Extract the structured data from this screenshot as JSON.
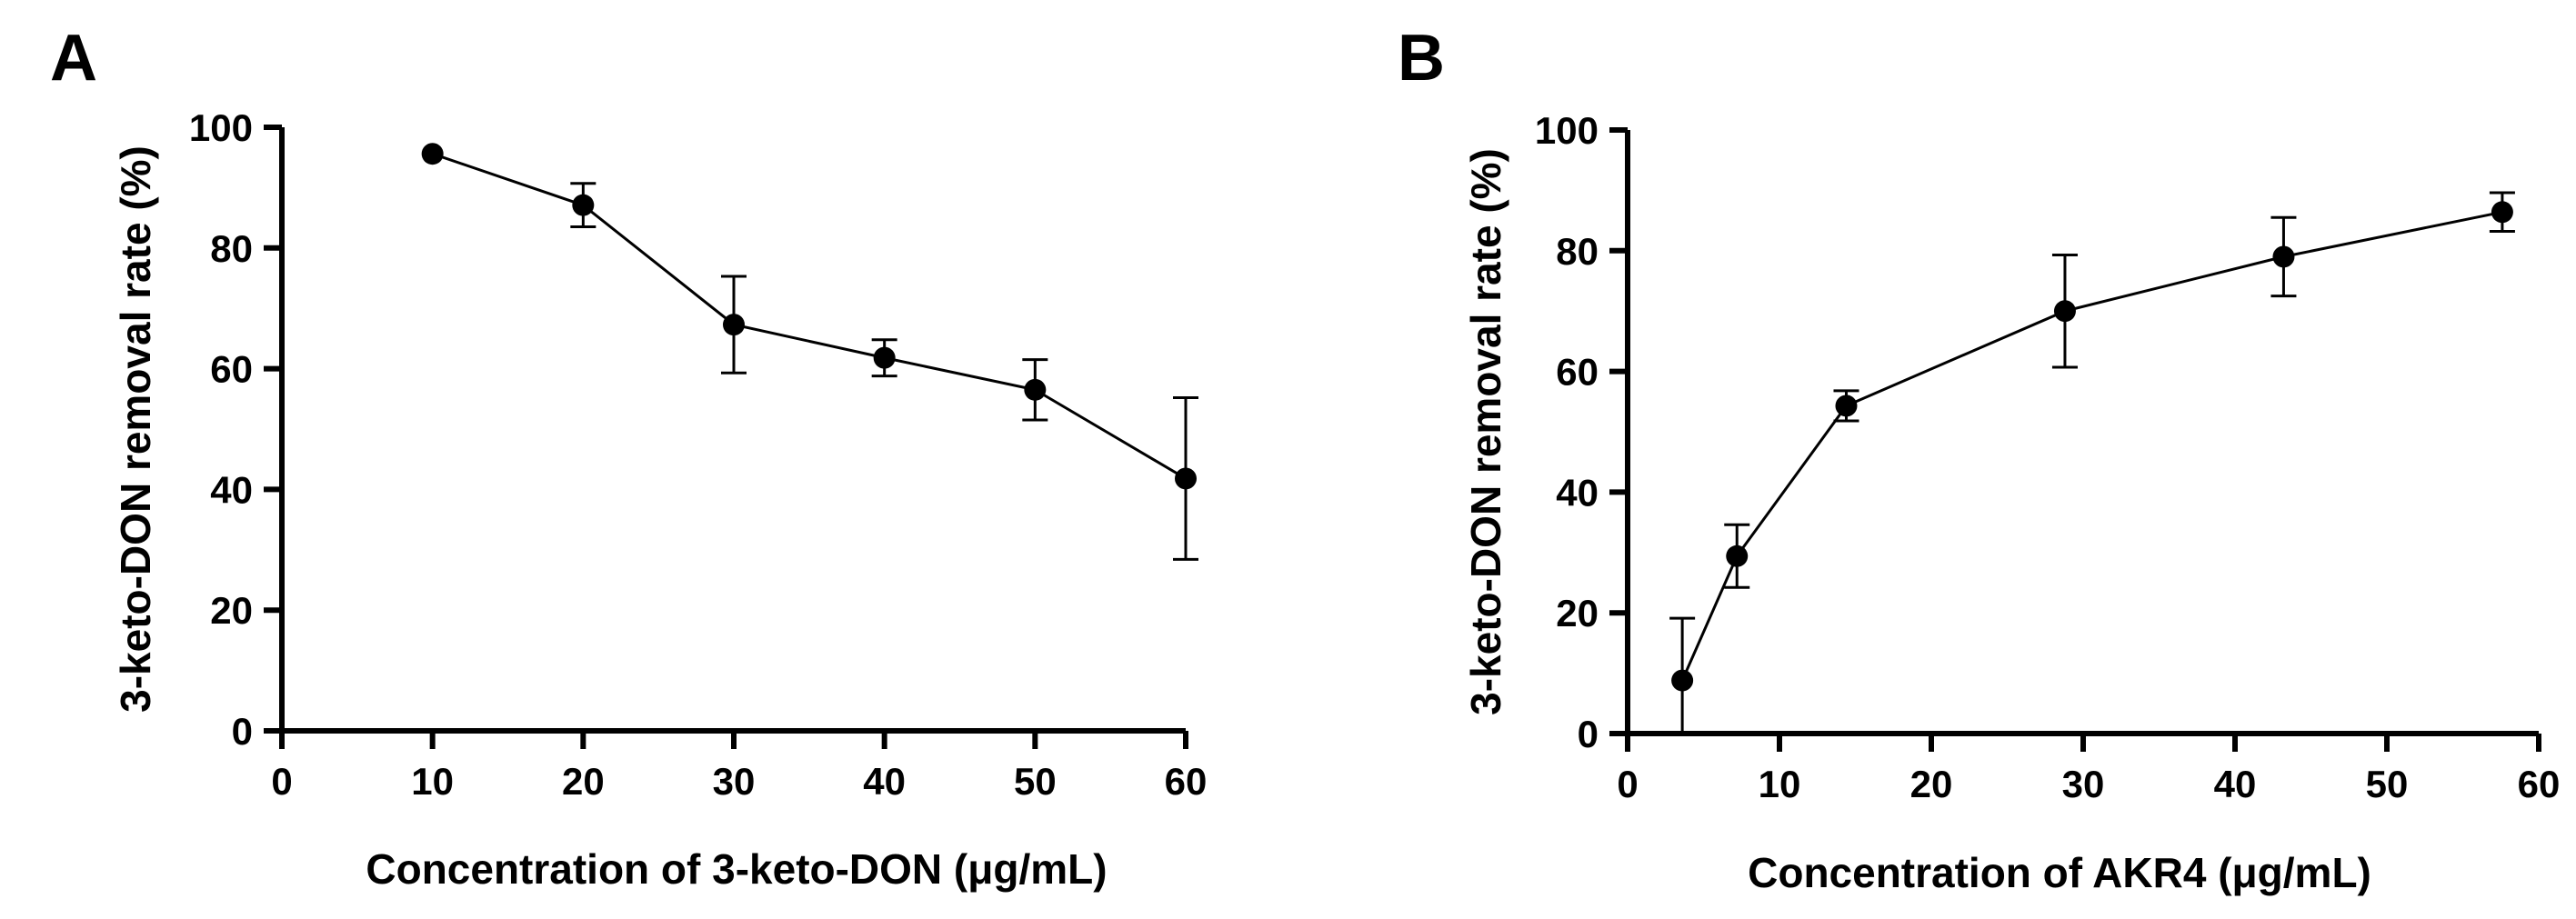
{
  "chart_data": [
    {
      "type": "line",
      "panel": "A",
      "title": "",
      "xlabel": "Concentration of 3-keto-DON (μg/mL)",
      "ylabel": "3-keto-DON removal rate (%)",
      "xlim": [
        0,
        60
      ],
      "ylim": [
        0,
        100
      ],
      "xticks": [
        "0",
        "10",
        "20",
        "30",
        "40",
        "50",
        "60"
      ],
      "yticks": [
        "0",
        "20",
        "40",
        "60",
        "80",
        "100"
      ],
      "grid": false,
      "series": [
        {
          "name": "3-keto-DON removal rate",
          "x": [
            10,
            20,
            30,
            40,
            50,
            60
          ],
          "y": [
            95.6,
            87.1,
            67.3,
            61.8,
            56.5,
            41.8
          ],
          "error": [
            0,
            3.6,
            8.0,
            3.0,
            5.0,
            13.4
          ]
        }
      ]
    },
    {
      "type": "line",
      "panel": "B",
      "title": "",
      "xlabel": "Concentration of AKR4 (μg/mL)",
      "ylabel": "3-keto-DON removal rate (%)",
      "xlim": [
        0,
        60
      ],
      "ylim": [
        0,
        100
      ],
      "xticks": [
        "0",
        "10",
        "20",
        "30",
        "40",
        "50",
        "60"
      ],
      "yticks": [
        "0",
        "20",
        "40",
        "60",
        "80",
        "100"
      ],
      "grid": false,
      "series": [
        {
          "name": "3-keto-DON removal rate",
          "x": [
            3.6,
            7.2,
            14.4,
            28.8,
            43.2,
            57.6
          ],
          "y": [
            8.8,
            29.4,
            54.3,
            70.0,
            79.0,
            86.4
          ],
          "error": [
            10.3,
            5.2,
            2.5,
            9.3,
            6.5,
            3.2
          ]
        }
      ]
    }
  ]
}
